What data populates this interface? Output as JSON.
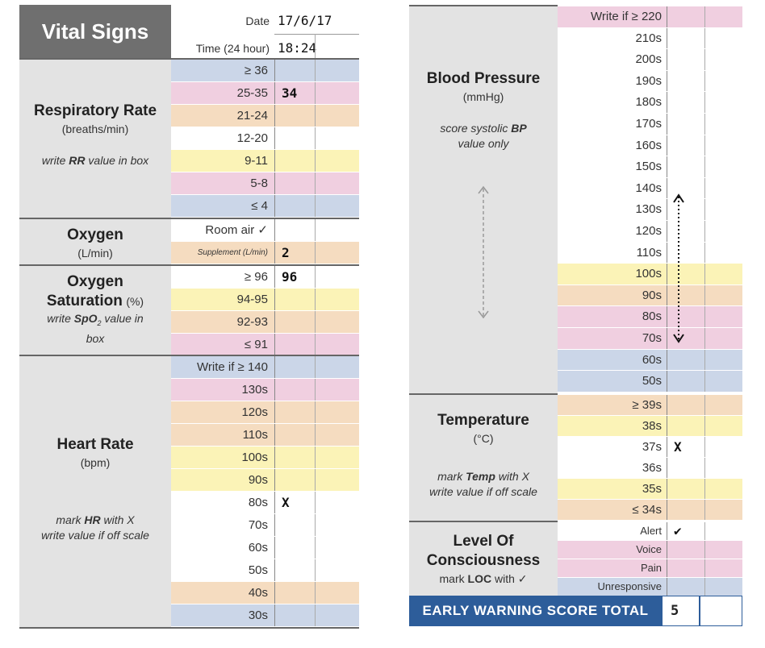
{
  "left": {
    "title": "Vital Signs",
    "date_label": "Date",
    "date_value": "17/6/17",
    "time_label": "Time (24 hour)",
    "time_value": "18:24",
    "respiratory": {
      "title": "Respiratory Rate",
      "unit": "(breaths/min)",
      "note_pre": "write ",
      "note_bold": "RR",
      "note_post": " value in box",
      "rows": [
        "≥ 36",
        "25-35",
        "21-24",
        "12-20",
        "9-11",
        "5-8",
        "≤ 4"
      ],
      "mark": "34"
    },
    "oxygen": {
      "title": "Oxygen",
      "unit": "(L/min)",
      "rows": [
        "Room air ✓",
        "Supplement (L/min)"
      ],
      "mark": "2"
    },
    "saturation": {
      "title": "Oxygen",
      "title2": "Saturation",
      "unit": "(%)",
      "note_pre": "write ",
      "note_bold": "SpO",
      "note_sub": "2",
      "note_post": " value in",
      "note_line2": "box",
      "rows": [
        "≥ 96",
        "94-95",
        "92-93",
        "≤ 91"
      ],
      "mark": "96"
    },
    "heart": {
      "title": "Heart Rate",
      "unit": "(bpm)",
      "note1_pre": "mark ",
      "note1_bold": "HR",
      "note1_post": " with X",
      "note2": "write value if off scale",
      "rows": [
        "Write if ≥ 140",
        "130s",
        "120s",
        "110s",
        "100s",
        "90s",
        "80s",
        "70s",
        "60s",
        "50s",
        "40s",
        "30s"
      ],
      "mark": "X"
    }
  },
  "right": {
    "bp": {
      "title": "Blood Pressure",
      "unit": "(mmHg)",
      "note1_pre": "score systolic ",
      "note1_bold": "BP",
      "note2": "value only",
      "rows": [
        "Write if ≥ 220",
        "210s",
        "200s",
        "190s",
        "180s",
        "170s",
        "160s",
        "150s",
        "140s",
        "130s",
        "120s",
        "110s",
        "100s",
        "90s",
        "80s",
        "70s",
        "60s",
        "50s"
      ]
    },
    "temp": {
      "title": "Temperature",
      "unit": "(°C)",
      "note1_pre": "mark ",
      "note1_bold": "Temp",
      "note1_post": " with X",
      "note2": "write value if off scale",
      "rows": [
        "≥ 39s",
        "38s",
        "37s",
        "36s",
        "35s",
        "≤ 34s"
      ],
      "mark": "X"
    },
    "loc": {
      "title": "Level Of",
      "title2": "Consciousness",
      "note_pre": "mark ",
      "note_bold": "LOC",
      "note_post": " with ✓",
      "rows": [
        "Alert",
        "Voice",
        "Pain",
        "Unresponsive"
      ],
      "mark": "✔"
    },
    "ews_label": "EARLY WARNING SCORE TOTAL",
    "ews_value": "5"
  },
  "colors": {
    "pink": "#f0cfe0",
    "orange": "#f5dcc0",
    "yellow": "#fbf3b7",
    "blue": "#cbd6e8",
    "header": "#6f6f6f",
    "ews_bar": "#2d5d9a"
  }
}
